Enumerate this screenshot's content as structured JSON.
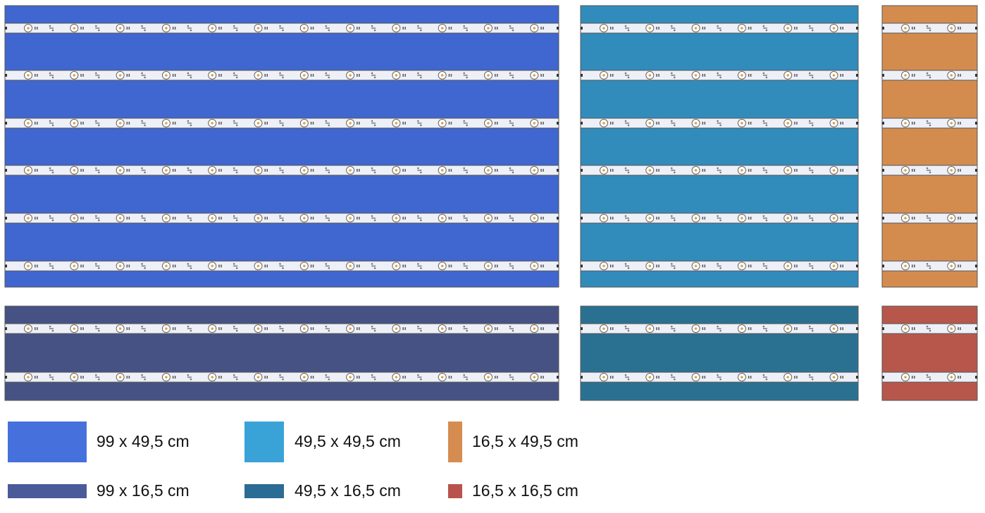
{
  "legend": {
    "items": [
      {
        "label": "99 x 49,5 cm"
      },
      {
        "label": "49,5 x 49,5 cm"
      },
      {
        "label": "16,5 x 49,5 cm"
      },
      {
        "label": "99 x 16,5 cm"
      },
      {
        "label": "49,5 x 16,5 cm"
      },
      {
        "label": "16,5 x 16,5 cm"
      }
    ]
  }
}
